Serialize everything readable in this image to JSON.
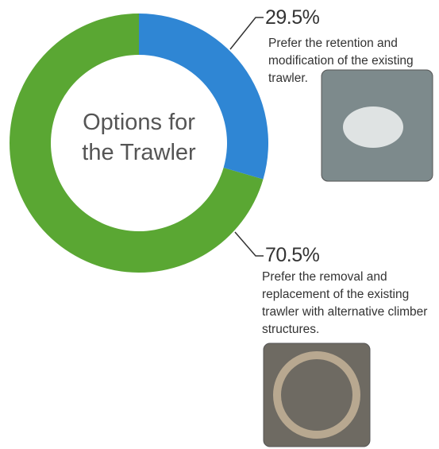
{
  "chart_data": {
    "type": "donut",
    "title": "Options for the Trawler",
    "categories": [
      "Prefer the retention and modification of the existing trawler.",
      "Prefer the removal and replacement of the existing trawler with alternative climber structures."
    ],
    "values": [
      29.5,
      70.5
    ],
    "value_labels": [
      "29.5%",
      "70.5%"
    ],
    "colors": [
      "#2f86d4",
      "#5aa733"
    ]
  }
}
